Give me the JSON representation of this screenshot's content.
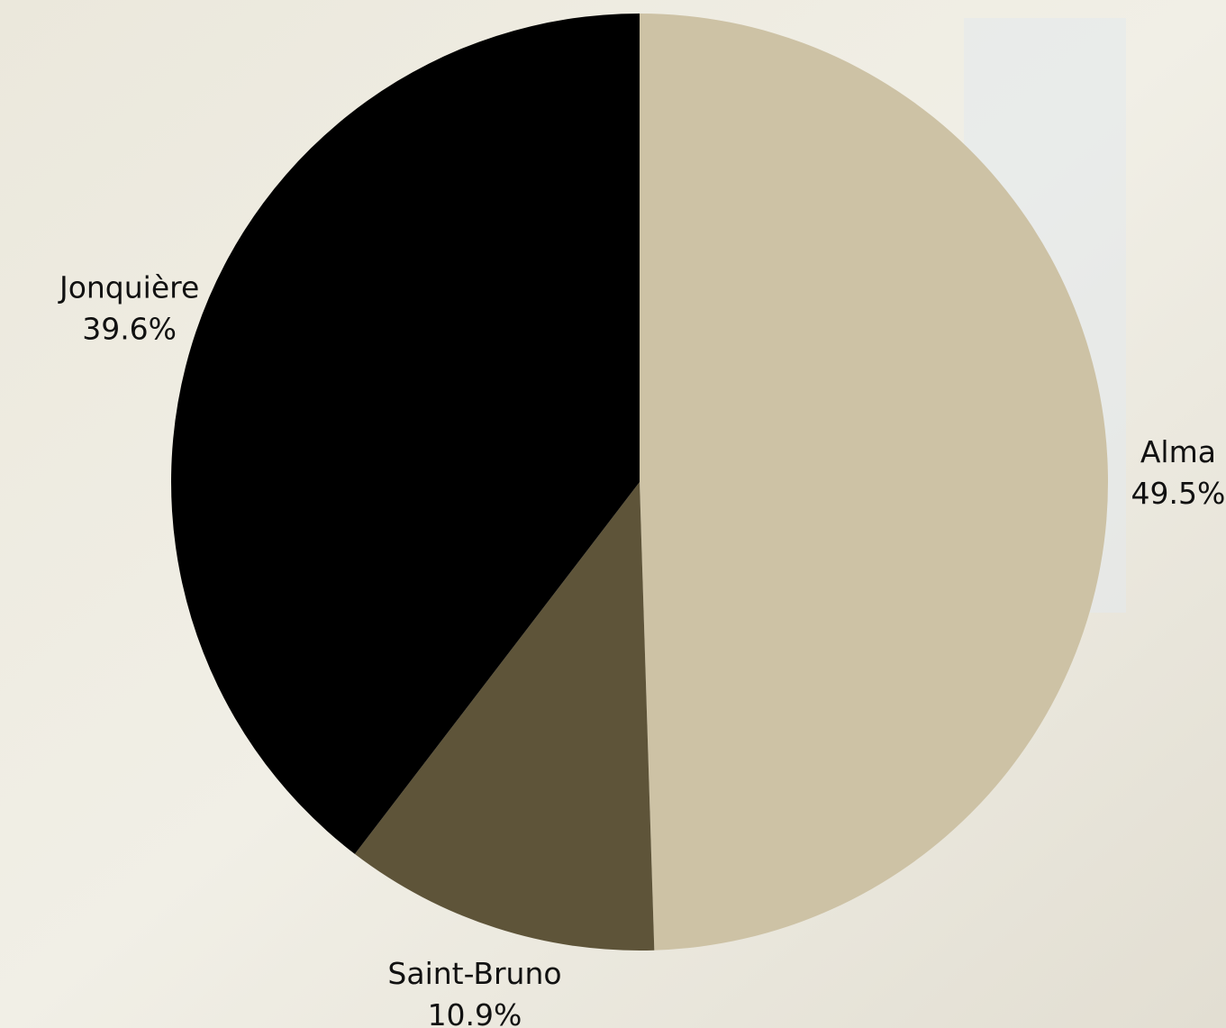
{
  "chart_data": {
    "type": "pie",
    "categories": [
      "Alma",
      "Saint-Bruno",
      "Jonquière"
    ],
    "values": [
      49.5,
      10.9,
      39.6
    ],
    "value_labels": [
      "49.5%",
      "10.9%",
      "39.6%"
    ],
    "colors": [
      "#cdc2a5",
      "#5e5439",
      "#000000"
    ]
  }
}
